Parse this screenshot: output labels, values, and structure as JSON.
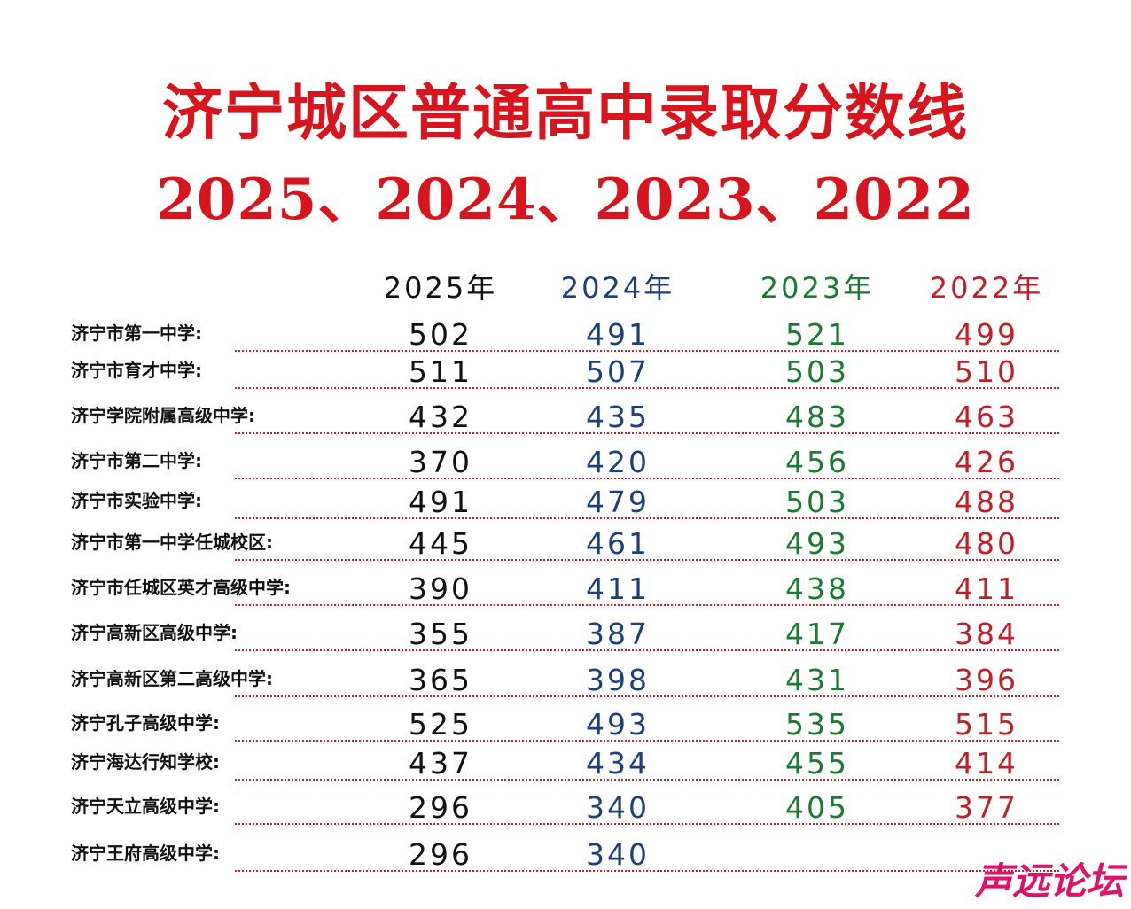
{
  "header": {
    "title": "济宁城区普通高中录取分数线",
    "subtitle": "2025、2024、2023、2022"
  },
  "table": {
    "columns": [
      {
        "label": "2025年",
        "color": "#111111"
      },
      {
        "label": "2024年",
        "color": "#1f3f78"
      },
      {
        "label": "2023年",
        "color": "#1d7a34"
      },
      {
        "label": "2022年",
        "color": "#c0202a"
      }
    ],
    "rows": [
      {
        "school": "济宁市第一中学:",
        "scores": [
          502,
          491,
          521,
          499
        ]
      },
      {
        "school": "济宁市育才中学:",
        "scores": [
          511,
          507,
          503,
          510
        ]
      },
      {
        "school": "济宁学院附属高级中学:",
        "scores": [
          432,
          435,
          483,
          463
        ]
      },
      {
        "school": "济宁市第二中学:",
        "scores": [
          370,
          420,
          456,
          426
        ]
      },
      {
        "school": "济宁市实验中学:",
        "scores": [
          491,
          479,
          503,
          488
        ]
      },
      {
        "school": "济宁市第一中学任城校区:",
        "scores": [
          445,
          461,
          493,
          480
        ]
      },
      {
        "school": "济宁市任城区英才高级中学:",
        "scores": [
          390,
          411,
          438,
          411
        ]
      },
      {
        "school": "济宁高新区高级中学:",
        "scores": [
          355,
          387,
          417,
          384
        ]
      },
      {
        "school": "济宁高新区第二高级中学:",
        "scores": [
          365,
          398,
          431,
          396
        ]
      },
      {
        "school": "济宁孔子高级中学:",
        "scores": [
          525,
          493,
          535,
          515
        ]
      },
      {
        "school": "济宁海达行知学校:",
        "scores": [
          437,
          434,
          455,
          414
        ]
      },
      {
        "school": "济宁天立高级中学:",
        "scores": [
          296,
          340,
          405,
          377
        ]
      },
      {
        "school": "济宁王府高级中学:",
        "scores": [
          296,
          340
        ]
      }
    ]
  },
  "watermark": "声远论坛"
}
